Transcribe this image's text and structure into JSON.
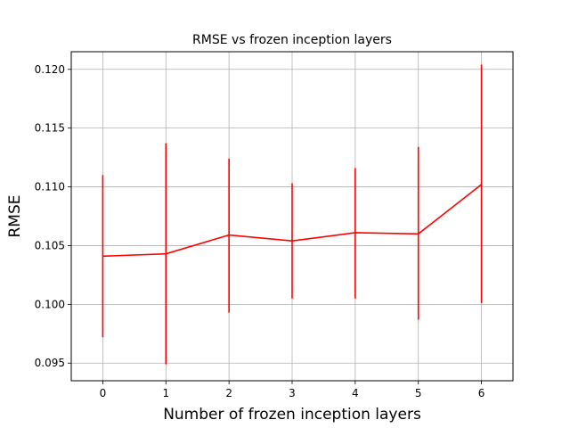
{
  "chart_data": {
    "type": "line",
    "title": "RMSE vs frozen inception layers",
    "xlabel": "Number of frozen inception layers",
    "ylabel": "RMSE",
    "x": [
      0,
      1,
      2,
      3,
      4,
      5,
      6
    ],
    "xlim": [
      -0.5,
      6.5
    ],
    "ylim": [
      0.0935,
      0.1215
    ],
    "xticks": [
      "0",
      "1",
      "2",
      "3",
      "4",
      "5",
      "6"
    ],
    "yticks": [
      "0.095",
      "0.100",
      "0.105",
      "0.110",
      "0.115",
      "0.120"
    ],
    "grid": true,
    "series": [
      {
        "values": [
          0.1041,
          0.1043,
          0.1059,
          0.1054,
          0.1061,
          0.106,
          0.1102
        ],
        "error_low": [
          0.0972,
          0.0949,
          0.0993,
          0.1005,
          0.1005,
          0.0987,
          0.1001
        ],
        "error_high": [
          0.111,
          0.1137,
          0.1124,
          0.1103,
          0.1116,
          0.1134,
          0.1204
        ],
        "color": "#ff0000"
      }
    ]
  }
}
